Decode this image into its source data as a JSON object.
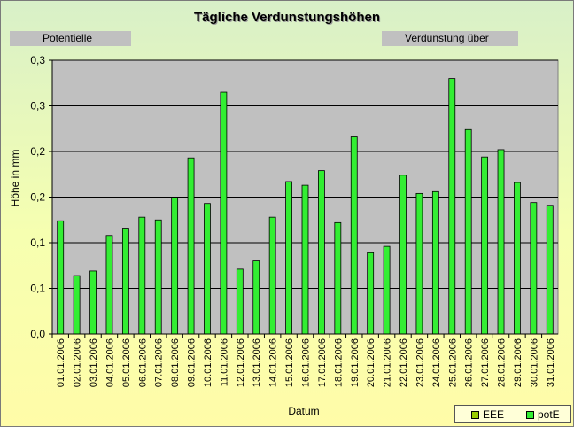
{
  "title": "Tägliche Verdunstungshöhen",
  "captions": {
    "left": "Potentielle",
    "right": "Verdunstung über"
  },
  "colors": {
    "plot_bg": "#c0c0c0",
    "bar": "#33ee33",
    "bar_stroke": "#000000",
    "legend_eee": "#99cc00",
    "legend_pote": "#33ee33"
  },
  "legend": {
    "items": [
      {
        "label": "EEE",
        "color": "#99cc00"
      },
      {
        "label": "potE",
        "color": "#33ee33"
      }
    ]
  },
  "chart_data": {
    "type": "bar",
    "title": "Tägliche Verdunstungshöhen",
    "xlabel": "Datum",
    "ylabel": "Höhe in mm",
    "ylim": [
      0,
      0.3
    ],
    "y_tick_labels": [
      "0,0",
      "0,1",
      "0,1",
      "0,2",
      "0,2",
      "0,3",
      "0,3"
    ],
    "grid": true,
    "legend_position": "bottom-right",
    "categories": [
      "01.01.2006",
      "02.01.2006",
      "03.01.2006",
      "04.01.2006",
      "05.01.2006",
      "06.01.2006",
      "07.01.2006",
      "08.01.2006",
      "09.01.2006",
      "10.01.2006",
      "11.01.2006",
      "12.01.2006",
      "13.01.2006",
      "14.01.2006",
      "15.01.2006",
      "16.01.2006",
      "17.01.2006",
      "18.01.2006",
      "19.01.2006",
      "20.01.2006",
      "21.01.2006",
      "22.01.2006",
      "23.01.2006",
      "24.01.2006",
      "25.01.2006",
      "26.01.2006",
      "27.01.2006",
      "28.01.2006",
      "29.01.2006",
      "30.01.2006",
      "31.01.2006"
    ],
    "series": [
      {
        "name": "potE",
        "values": [
          0.124,
          0.064,
          0.069,
          0.108,
          0.116,
          0.128,
          0.125,
          0.149,
          0.193,
          0.143,
          0.265,
          0.071,
          0.08,
          0.128,
          0.167,
          0.163,
          0.179,
          0.122,
          0.216,
          0.089,
          0.096,
          0.174,
          0.154,
          0.156,
          0.28,
          0.224,
          0.194,
          0.202,
          0.166,
          0.144,
          0.141
        ]
      }
    ]
  }
}
